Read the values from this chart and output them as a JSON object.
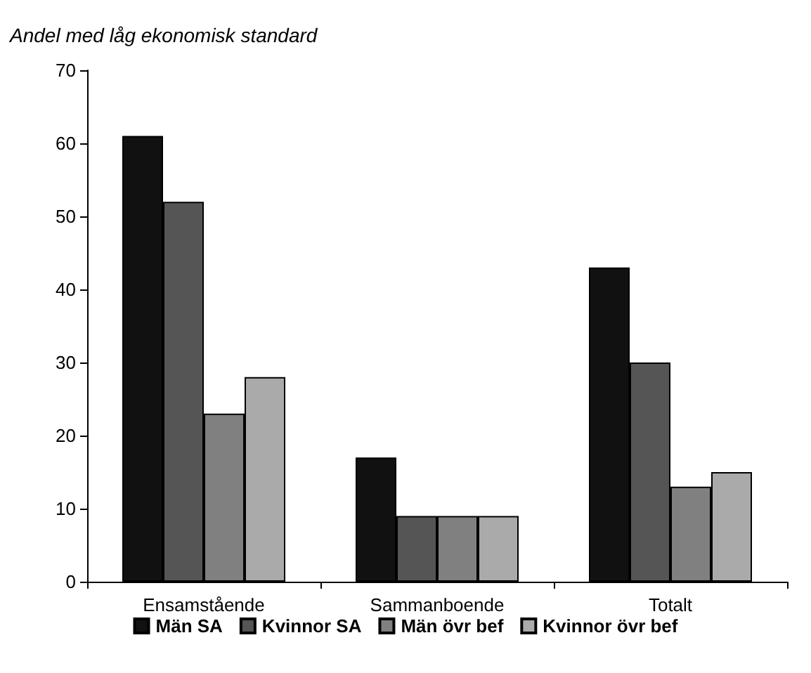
{
  "chart_data": {
    "type": "bar",
    "ylabel": "Andel med låg ekonomisk standard",
    "categories": [
      "Ensamstående",
      "Sammanboende",
      "Totalt"
    ],
    "series": [
      {
        "name": "Män SA",
        "color": "#111111",
        "values": [
          61,
          17,
          43
        ]
      },
      {
        "name": "Kvinnor SA",
        "color": "#555555",
        "values": [
          52,
          9,
          30
        ]
      },
      {
        "name": "Män övr bef",
        "color": "#808080",
        "values": [
          23,
          9,
          13
        ]
      },
      {
        "name": "Kvinnor övr bef",
        "color": "#aaaaaa",
        "values": [
          28,
          9,
          15
        ]
      }
    ],
    "ylim": [
      0,
      70
    ],
    "yticks": [
      0,
      10,
      20,
      30,
      40,
      50,
      60,
      70
    ],
    "grid": false,
    "legend": "bottom"
  }
}
